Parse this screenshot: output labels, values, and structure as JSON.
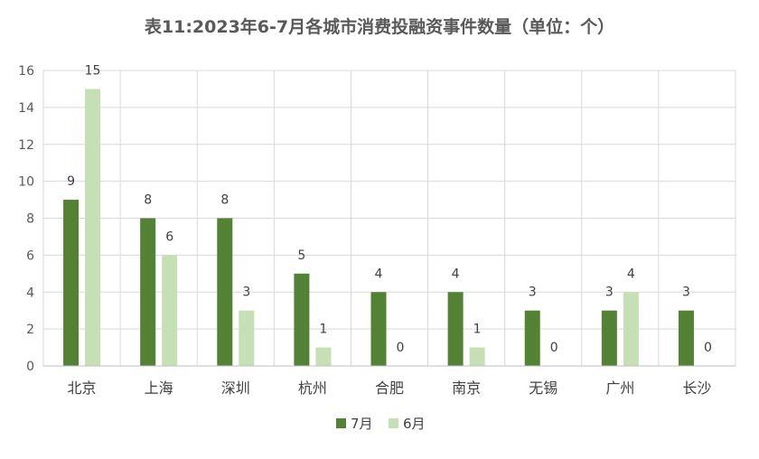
{
  "chart_data": {
    "type": "bar",
    "title": "表11:2023年6-7月各城市消费投融资事件数量（单位：个）",
    "categories": [
      "北京",
      "上海",
      "深圳",
      "杭州",
      "合肥",
      "南京",
      "无锡",
      "广州",
      "长沙"
    ],
    "series": [
      {
        "name": "7月",
        "values": [
          9,
          8,
          8,
          5,
          4,
          4,
          3,
          3,
          3
        ],
        "color": "#548235"
      },
      {
        "name": "6月",
        "values": [
          15,
          6,
          3,
          1,
          0,
          1,
          0,
          4,
          0
        ],
        "color": "#c5e0b4"
      }
    ],
    "yticks": [
      0,
      2,
      4,
      6,
      8,
      10,
      12,
      14,
      16
    ],
    "ylim": [
      0,
      16
    ],
    "grid": true,
    "legend_position": "bottom"
  }
}
